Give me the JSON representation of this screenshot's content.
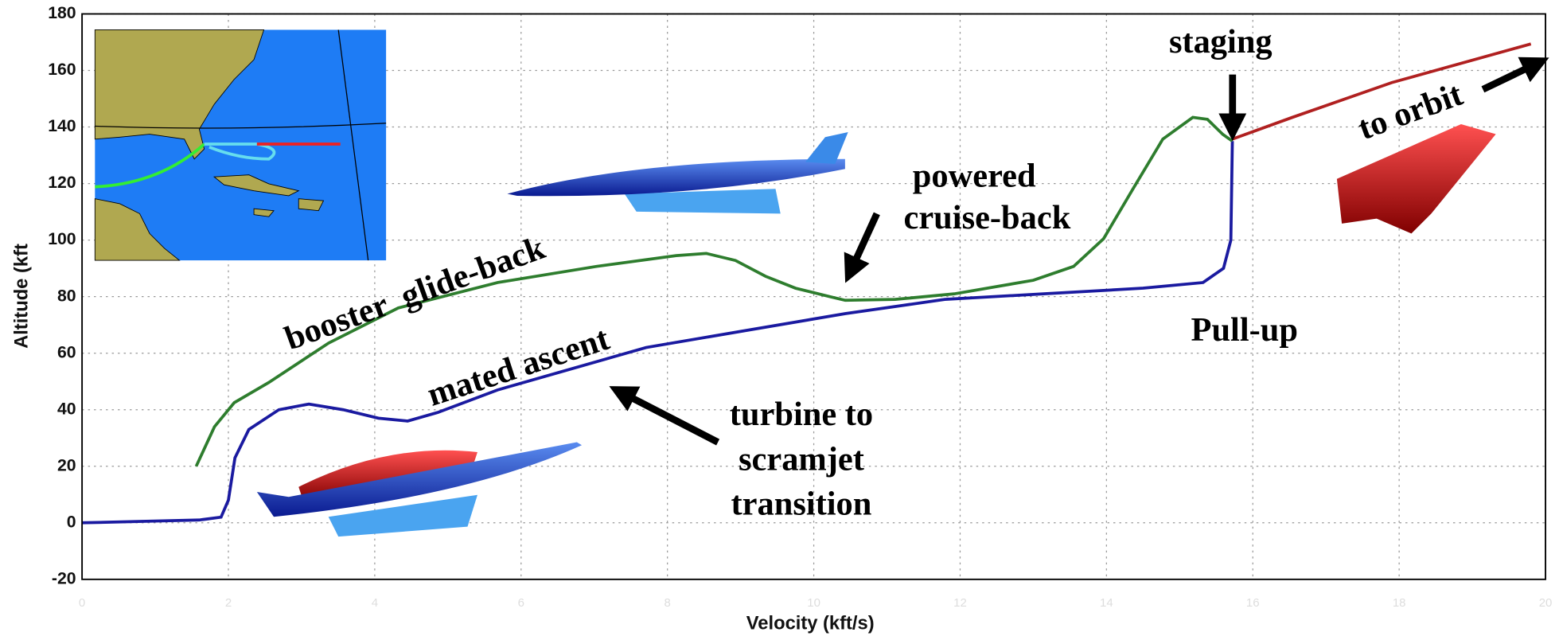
{
  "chart_data": {
    "type": "line",
    "x_label": "Velocity (kft/s)",
    "y_label": "Altitude (kft",
    "xlim": [
      0,
      20
    ],
    "xticks": [
      0,
      2,
      4,
      6,
      8,
      10,
      12,
      14,
      16,
      18,
      20
    ],
    "ylim": [
      -20,
      180
    ],
    "yticks": [
      -20,
      0,
      20,
      40,
      60,
      80,
      100,
      120,
      140,
      160,
      180
    ],
    "grid": true,
    "series": [
      {
        "color": "#1a1aa0",
        "x": [
          0,
          1.6,
          1.9,
          2.0,
          2.09,
          2.28,
          2.69,
          3.1,
          3.57,
          4.05,
          4.45,
          4.86,
          5.68,
          6.49,
          7.71,
          9.07,
          10.43,
          11.79,
          13.14,
          14.5,
          15.32,
          15.6,
          15.7,
          15.72
        ],
        "values": [
          0,
          1,
          2,
          8,
          23,
          33,
          40,
          42,
          40,
          37,
          36,
          39,
          47,
          53,
          62,
          68,
          74,
          79,
          81,
          83,
          85,
          90,
          100,
          135
        ]
      },
      {
        "color": "#2e7d2e",
        "x": [
          1.56,
          1.81,
          2.08,
          2.55,
          3.37,
          4.32,
          5.68,
          7.03,
          8.12,
          8.53,
          8.93,
          9.34,
          9.75,
          10.22,
          10.43,
          11.11,
          11.92,
          13.0,
          13.55,
          13.96,
          14.36,
          14.77,
          15.18,
          15.38,
          15.59,
          15.72
        ],
        "values": [
          20,
          34,
          42.5,
          49.6,
          63.6,
          76,
          85,
          90.7,
          94.5,
          95.3,
          92.8,
          87.2,
          83,
          80,
          78.7,
          79,
          81,
          85.8,
          90.7,
          100.5,
          118,
          135.7,
          143.4,
          142.7,
          137.4,
          135
        ]
      },
      {
        "color": "#b02020",
        "x": [
          15.72,
          16.54,
          17.9,
          19.8
        ],
        "values": [
          135.7,
          143.4,
          155.7,
          169.4
        ]
      }
    ],
    "annotations": [
      "staging",
      "to orbit",
      "powered",
      "cruise-back",
      "booster  glide-back",
      "mated ascent",
      "Pull-up",
      "turbine to",
      "scramjet",
      "transition"
    ]
  }
}
